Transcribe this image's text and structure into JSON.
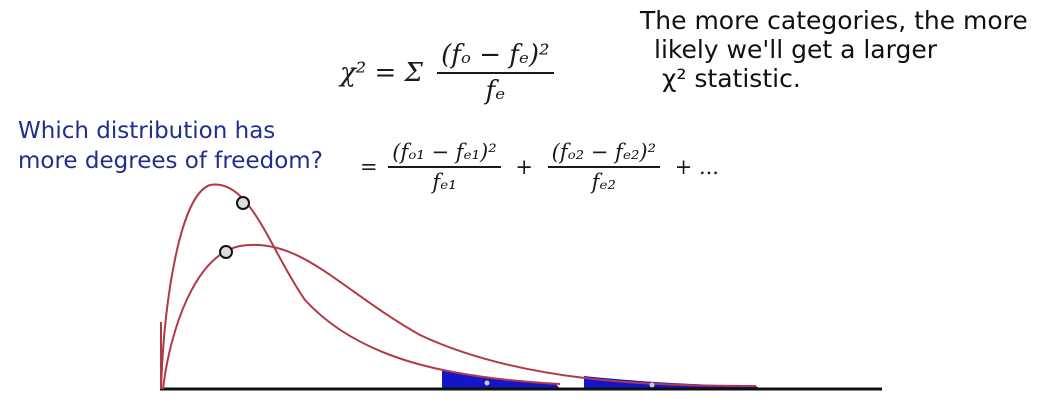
{
  "note": {
    "line1": "The more categories, the more",
    "line2": "likely we'll get a larger",
    "line3": "χ² statistic."
  },
  "question": {
    "line1": "Which distribution has",
    "line2": "more degrees of freedom?"
  },
  "formula_main": {
    "lhs": "χ² = Σ",
    "numerator": "(fₒ − fₑ)²",
    "denominator": "fₑ"
  },
  "formula_expanded": {
    "eq": "=",
    "term1_num": "(fₒ₁ − fₑ₁)²",
    "term1_den": "fₑ₁",
    "plus1": "+",
    "term2_num": "(fₒ₂ − fₑ₂)²",
    "term2_den": "fₑ₂",
    "tail": "+ ..."
  },
  "colors": {
    "curve": "#b03a48",
    "shade": "#1414c8",
    "axis": "#111111",
    "question_text": "#1f2f8f"
  }
}
